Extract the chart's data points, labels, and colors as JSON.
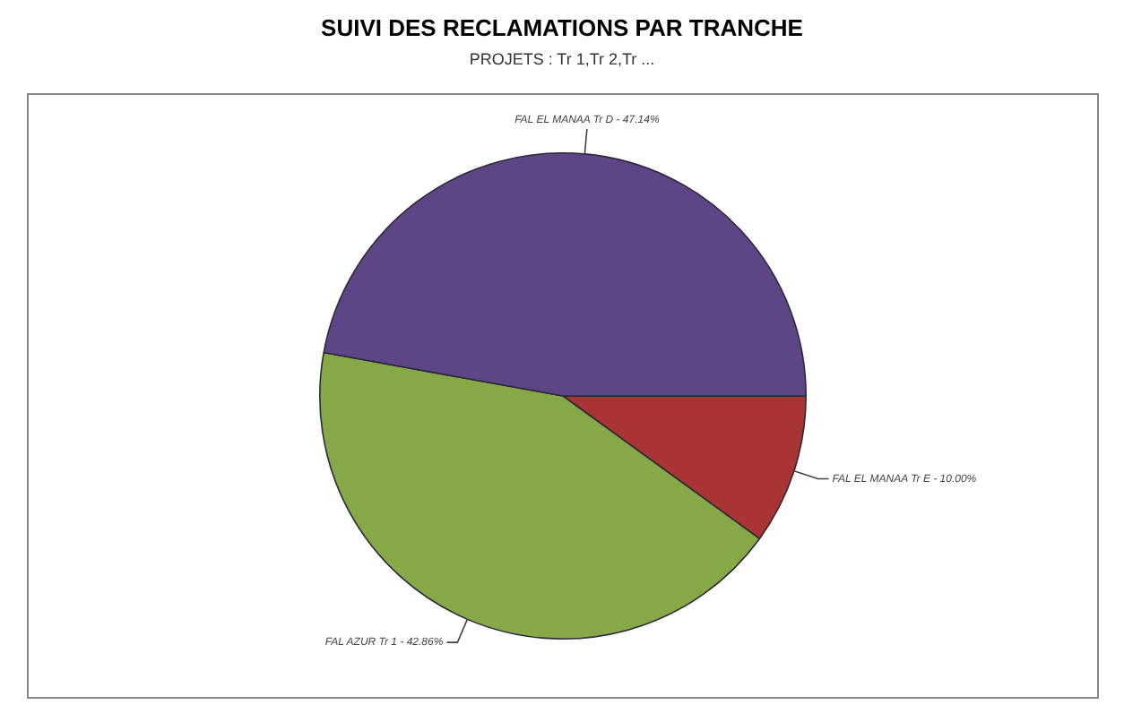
{
  "chart_data": {
    "type": "pie",
    "title": "SUIVI DES RECLAMATIONS PAR TRANCHE",
    "subtitle": "PROJETS : Tr 1,Tr 2,Tr ...",
    "categories": [
      "FAL EL MANAA Tr E",
      "FAL AZUR Tr 1",
      "FAL EL MANAA Tr D"
    ],
    "values": [
      10.0,
      42.86,
      47.14
    ],
    "value_labels": [
      "10.00%",
      "42.86%",
      "47.14%"
    ],
    "colors": [
      "#a83434",
      "#86a846",
      "#5d4586"
    ],
    "legend": false
  }
}
